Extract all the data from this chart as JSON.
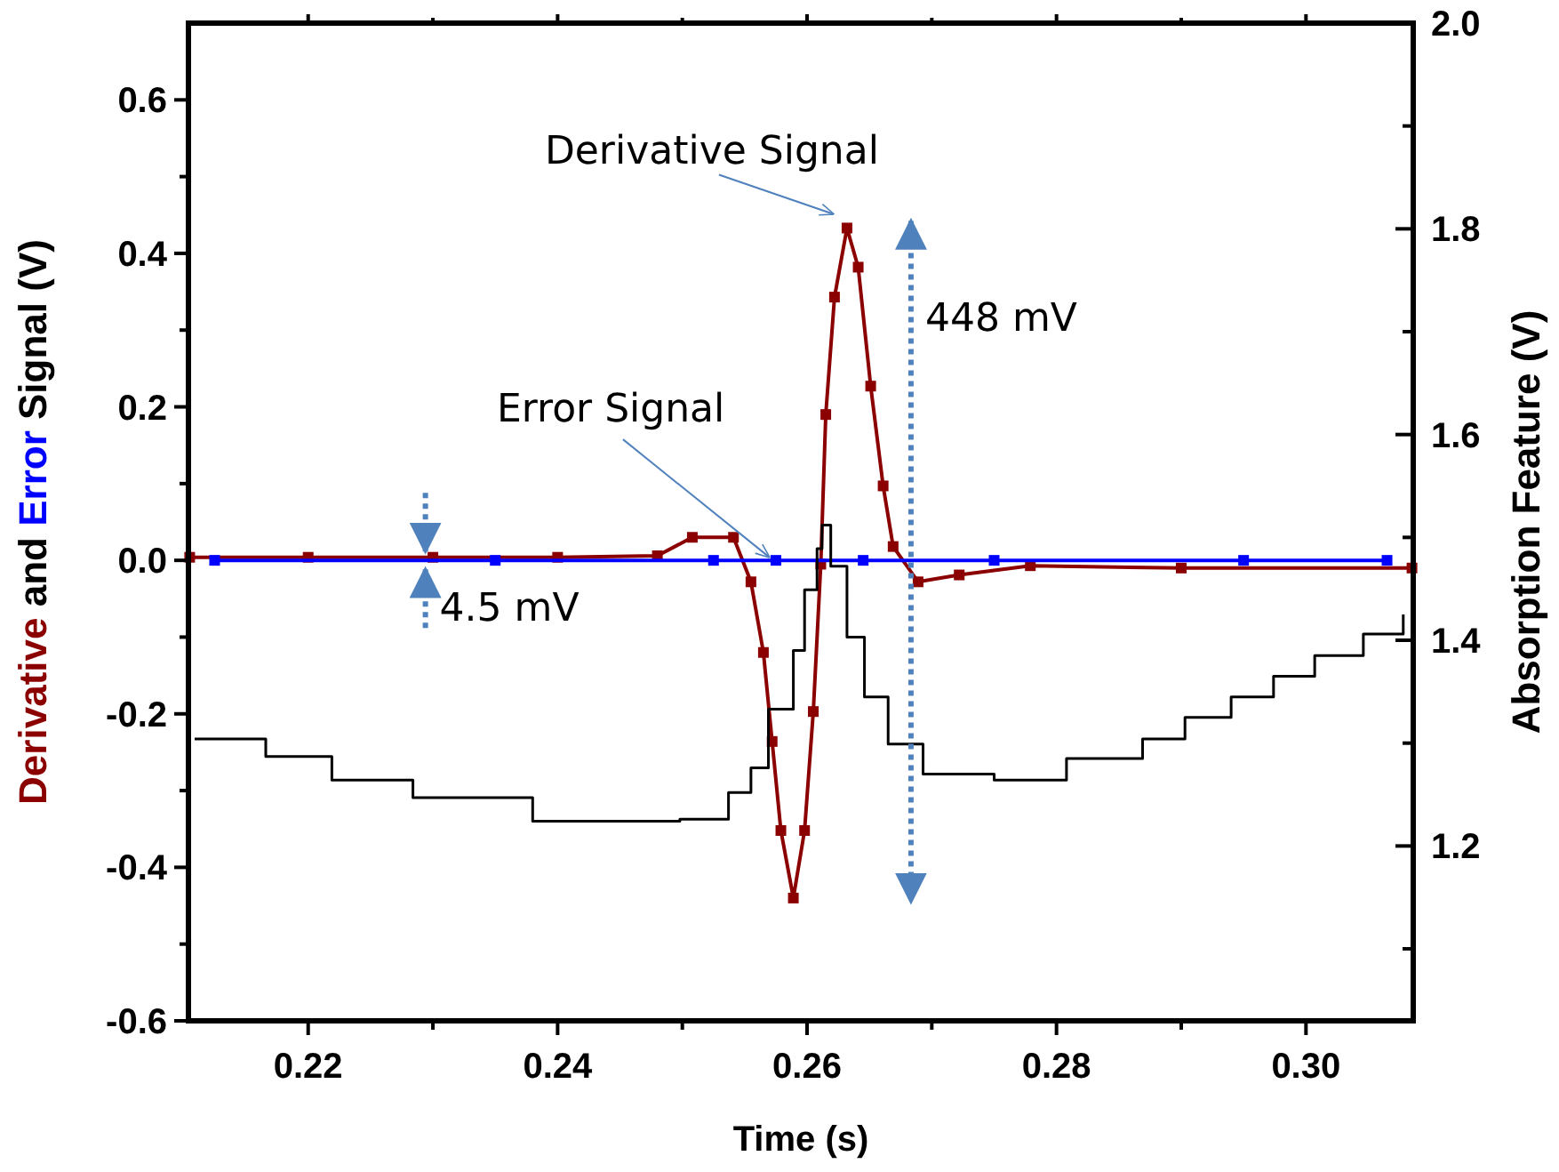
{
  "chart_data": {
    "type": "line",
    "xlabel": "Time (s)",
    "ylabel": "Derivative and Error Signal (V)",
    "y2label": "Absorption Feature (V)",
    "xlim": [
      0.2104,
      0.3086
    ],
    "ylim": [
      -0.6,
      0.7
    ],
    "y2lim": [
      1.03,
      2.0
    ],
    "xticks": [
      0.22,
      {
        "value": 0.23,
        "label": null
      },
      0.24,
      {
        "value": 0.25,
        "label": null
      },
      0.26,
      {
        "value": 0.27,
        "label": null
      },
      0.28,
      {
        "value": 0.29,
        "label": null
      },
      {
        "value": 0.3,
        "label": "0.30"
      }
    ],
    "yticks": [
      -0.6,
      {
        "value": -0.5,
        "label": null
      },
      -0.4,
      {
        "value": -0.3,
        "label": null
      },
      -0.2,
      {
        "value": -0.1,
        "label": null
      },
      {
        "value": 0,
        "label": "0.0"
      },
      {
        "value": 0.1,
        "label": null
      },
      0.2,
      {
        "value": 0.3,
        "label": null
      },
      0.4,
      {
        "value": 0.5,
        "label": null
      },
      0.6
    ],
    "y2ticks": [
      {
        "value": 1.1,
        "label": null
      },
      1.2,
      {
        "value": 1.3,
        "label": null
      },
      1.4,
      {
        "value": 1.5,
        "label": null
      },
      1.6,
      {
        "value": 1.7,
        "label": null
      },
      1.8,
      {
        "value": 1.9,
        "label": null
      },
      {
        "value": 2,
        "label": "2.0"
      }
    ],
    "grid": false,
    "series": [
      {
        "color": "#8b0000",
        "marker": "square",
        "x": [
          0.2105,
          0.22,
          0.23,
          0.24,
          0.248,
          0.2508,
          0.2541,
          0.2555,
          0.2565,
          0.2572,
          0.2579,
          0.2589,
          0.2598,
          0.2605,
          0.2611,
          0.2615,
          0.2622,
          0.2632,
          0.2641,
          0.2651,
          0.2661,
          0.2669,
          0.2689,
          0.2722,
          0.2779,
          0.29,
          0.3085
        ],
        "values": [
          0.004,
          0.004,
          0.004,
          0.004,
          0.006,
          0.03,
          0.03,
          -0.028,
          -0.12,
          -0.236,
          -0.352,
          -0.44,
          -0.352,
          -0.197,
          -0.005,
          0.19,
          0.343,
          0.433,
          0.382,
          0.227,
          0.097,
          0.018,
          -0.028,
          -0.019,
          -0.007,
          -0.01,
          -0.01
        ]
      },
      {
        "color": "#0000ff",
        "marker": "square",
        "x": [
          0.2125,
          0.235,
          0.2525,
          0.2575,
          0.2645,
          0.275,
          0.295,
          0.3065
        ],
        "values": [
          0.0,
          0.0,
          0.0,
          0.0,
          0.0,
          0.0,
          0.0,
          0.0
        ]
      },
      {
        "type": "step",
        "axis": "y2",
        "color": "#000000",
        "marker": "none",
        "x": [
          0.2109,
          0.2166,
          0.2219,
          0.2284,
          0.238,
          0.2498,
          0.2537,
          0.2555,
          0.2569,
          0.2589,
          0.2598,
          0.2608,
          0.2612,
          0.2619,
          0.2632,
          0.2646,
          0.2665,
          0.2693,
          0.275,
          0.2808,
          0.2869,
          0.2903,
          0.294,
          0.2974,
          0.3007,
          0.3046,
          0.3078
        ],
        "values": [
          1.304,
          1.287,
          1.264,
          1.247,
          1.224,
          1.226,
          1.252,
          1.276,
          1.333,
          1.39,
          1.449,
          1.489,
          1.512,
          1.472,
          1.403,
          1.345,
          1.299,
          1.27,
          1.264,
          1.285,
          1.304,
          1.325,
          1.345,
          1.365,
          1.385,
          1.406,
          1.425
        ]
      }
    ],
    "annotations": [
      {
        "text": "Derivative Signal",
        "x": 0.2632,
        "y": 0.433
      },
      {
        "text": "Error Signal",
        "x": 0.2575,
        "y": 0.0
      },
      "448 mV",
      {
        "text": "4.5 mV",
        "x": 0.2294,
        "y": 0.0
      }
    ]
  }
}
